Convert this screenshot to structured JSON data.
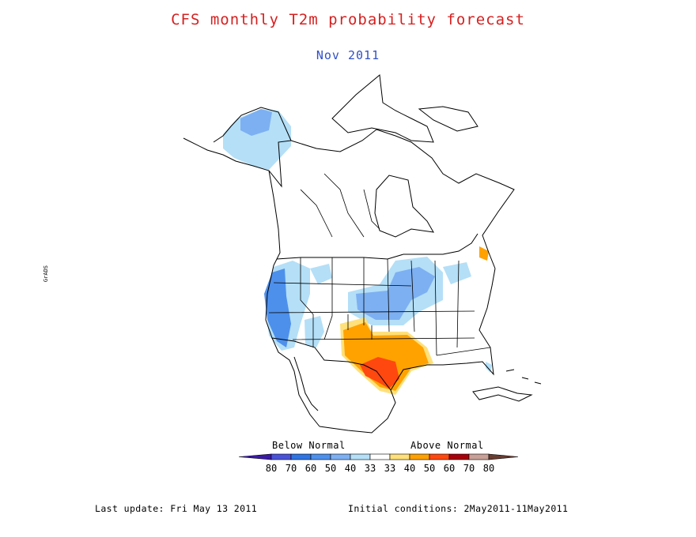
{
  "title": "CFS monthly T2m probability forecast",
  "subtitle": "Nov 2011",
  "legend": {
    "below_label": "Below Normal",
    "above_label": "Above Normal",
    "tick_labels": [
      "80",
      "70",
      "60",
      "50",
      "40",
      "33",
      "33",
      "40",
      "50",
      "60",
      "70",
      "80"
    ],
    "colors": [
      "#3a1aa8",
      "#4a52d8",
      "#2f74e2",
      "#4d90ec",
      "#7db0f2",
      "#b4dff7",
      "#ffffff",
      "#ffe07a",
      "#ffa200",
      "#ff4810",
      "#a8000c",
      "#c8a098",
      "#6a3c30"
    ]
  },
  "side_mark": "GrADS",
  "footer": {
    "last_update": "Last update: Fri May 13 2011",
    "initial_conditions": "Initial conditions: 2May2011-11May2011"
  },
  "colors": {
    "title": "#d62020",
    "subtitle": "#3050c8",
    "light_blue": "#b4dff7",
    "mid_blue": "#7db0f2",
    "blue": "#4d90ec",
    "pale_orange": "#ffe07a",
    "orange": "#ffa200",
    "red_orange": "#ff4810"
  }
}
